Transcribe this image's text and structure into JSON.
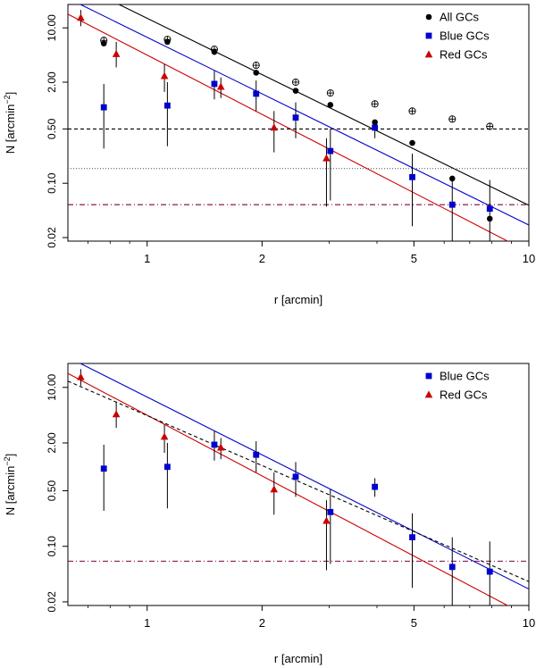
{
  "chart_data": [
    {
      "type": "scatter",
      "title": "",
      "xlabel": "r [arcmin]",
      "ylabel_main": "N [arcmin",
      "ylabel_sup": "−2",
      "ylabel_tail": "]",
      "xscale": "log",
      "yscale": "log",
      "xlim": [
        0.62,
        10
      ],
      "ylim": [
        0.018,
        20
      ],
      "xticks": [
        {
          "v": 1,
          "label": "1"
        },
        {
          "v": 2,
          "label": "2"
        },
        {
          "v": 5,
          "label": "5"
        },
        {
          "v": 10,
          "label": "10"
        }
      ],
      "yticks": [
        {
          "v": 0.02,
          "label": "0.02"
        },
        {
          "v": 0.1,
          "label": "0.10"
        },
        {
          "v": 0.5,
          "label": "0.50"
        },
        {
          "v": 2,
          "label": "2.00"
        },
        {
          "v": 10,
          "label": "10.00"
        }
      ],
      "legend": {
        "position": "top-right",
        "entries": [
          {
            "name": "All GCs",
            "marker": "circle",
            "color": "#000000"
          },
          {
            "name": "Blue GCs",
            "marker": "square",
            "color": "#0000cc"
          },
          {
            "name": "Red GCs",
            "marker": "triangle",
            "color": "#cc0000"
          }
        ]
      },
      "series": [
        {
          "name": "All GCs",
          "marker": "circle",
          "color": "#000000",
          "points": [
            {
              "x": 0.77,
              "y": 6.3
            },
            {
              "x": 1.13,
              "y": 6.6
            },
            {
              "x": 1.5,
              "y": 4.9
            },
            {
              "x": 1.93,
              "y": 2.65
            },
            {
              "x": 2.45,
              "y": 1.55
            },
            {
              "x": 3.02,
              "y": 1.02
            },
            {
              "x": 3.95,
              "y": 0.61
            },
            {
              "x": 4.95,
              "y": 0.33
            },
            {
              "x": 6.3,
              "y": 0.115
            },
            {
              "x": 7.9,
              "y": 0.035
            }
          ]
        },
        {
          "name": "All GCs (uncorrected)",
          "marker": "circle-plus",
          "color": "#000000",
          "points": [
            {
              "x": 0.77,
              "y": 6.9
            },
            {
              "x": 1.13,
              "y": 7.1
            },
            {
              "x": 1.5,
              "y": 5.3
            },
            {
              "x": 1.93,
              "y": 3.3
            },
            {
              "x": 2.45,
              "y": 2.0
            },
            {
              "x": 3.02,
              "y": 1.45
            },
            {
              "x": 3.95,
              "y": 1.05
            },
            {
              "x": 4.95,
              "y": 0.85
            },
            {
              "x": 6.3,
              "y": 0.67
            },
            {
              "x": 7.9,
              "y": 0.54
            }
          ]
        },
        {
          "name": "Blue GCs",
          "marker": "square",
          "color": "#0000cc",
          "points": [
            {
              "x": 0.77,
              "y": 0.95,
              "lo": 0.28,
              "hi": 1.9
            },
            {
              "x": 1.13,
              "y": 1.0,
              "lo": 0.3,
              "hi": 2.0
            },
            {
              "x": 1.5,
              "y": 1.9,
              "lo": 1.2,
              "hi": 2.8
            },
            {
              "x": 1.93,
              "y": 1.42,
              "lo": 0.85,
              "hi": 2.1
            },
            {
              "x": 2.45,
              "y": 0.7,
              "lo": 0.38,
              "hi": 1.1
            },
            {
              "x": 3.02,
              "y": 0.26,
              "lo": 0.06,
              "hi": 0.5
            },
            {
              "x": 3.95,
              "y": 0.52,
              "lo": 0.38,
              "hi": 0.66
            },
            {
              "x": 4.95,
              "y": 0.12,
              "lo": 0.028,
              "hi": 0.24
            },
            {
              "x": 6.3,
              "y": 0.053,
              "lo": 0.01,
              "hi": 0.12
            },
            {
              "x": 7.9,
              "y": 0.047,
              "lo": 0.01,
              "hi": 0.11
            }
          ]
        },
        {
          "name": "Red GCs",
          "marker": "triangle",
          "color": "#cc0000",
          "points": [
            {
              "x": 0.67,
              "y": 13.5,
              "lo": 10.5,
              "hi": 17.0
            },
            {
              "x": 0.83,
              "y": 4.6,
              "lo": 3.1,
              "hi": 6.6
            },
            {
              "x": 1.11,
              "y": 2.4,
              "lo": 1.5,
              "hi": 3.4
            },
            {
              "x": 1.56,
              "y": 1.75,
              "lo": 1.25,
              "hi": 2.3
            },
            {
              "x": 2.15,
              "y": 0.52,
              "lo": 0.25,
              "hi": 0.85
            },
            {
              "x": 2.95,
              "y": 0.21,
              "lo": 0.05,
              "hi": 0.38
            }
          ]
        }
      ],
      "lines": [
        {
          "name": "All GCs fit",
          "color": "#000000",
          "style": "solid",
          "x1": 0.62,
          "y1": 42,
          "x2": 10,
          "y2": 0.052
        },
        {
          "name": "Blue GCs fit",
          "color": "#0000cc",
          "style": "solid",
          "x1": 0.62,
          "y1": 24,
          "x2": 10,
          "y2": 0.029
        },
        {
          "name": "Red GCs fit",
          "color": "#cc0000",
          "style": "solid",
          "x1": 0.62,
          "y1": 15,
          "x2": 10,
          "y2": 0.013
        },
        {
          "name": "Background all GCs",
          "color": "#000000",
          "style": "dashed",
          "y": 0.5
        },
        {
          "name": "Background blue GCs",
          "color": "#666666",
          "style": "dotted",
          "y": 0.155
        },
        {
          "name": "Background red GCs",
          "color": "#800040",
          "style": "dashdot",
          "y": 0.053
        }
      ]
    },
    {
      "type": "scatter",
      "title": "",
      "xlabel": "r [arcmin]",
      "ylabel_main": "N [arcmin",
      "ylabel_sup": "−2",
      "ylabel_tail": "]",
      "xscale": "log",
      "yscale": "log",
      "xlim": [
        0.62,
        10
      ],
      "ylim": [
        0.018,
        20
      ],
      "xticks": [
        {
          "v": 1,
          "label": "1"
        },
        {
          "v": 2,
          "label": "2"
        },
        {
          "v": 5,
          "label": "5"
        },
        {
          "v": 10,
          "label": "10"
        }
      ],
      "yticks": [
        {
          "v": 0.02,
          "label": "0.02"
        },
        {
          "v": 0.1,
          "label": "0.10"
        },
        {
          "v": 0.5,
          "label": "0.50"
        },
        {
          "v": 2,
          "label": "2.00"
        },
        {
          "v": 10,
          "label": "10.00"
        }
      ],
      "legend": {
        "position": "top-right",
        "entries": [
          {
            "name": "Blue GCs",
            "marker": "square",
            "color": "#0000cc"
          },
          {
            "name": "Red GCs",
            "marker": "triangle",
            "color": "#cc0000"
          }
        ]
      },
      "series": [
        {
          "name": "Blue GCs",
          "marker": "square",
          "color": "#0000cc",
          "points": [
            {
              "x": 0.77,
              "y": 0.95,
              "lo": 0.28,
              "hi": 1.9
            },
            {
              "x": 1.13,
              "y": 1.0,
              "lo": 0.3,
              "hi": 2.0
            },
            {
              "x": 1.5,
              "y": 1.9,
              "lo": 1.2,
              "hi": 2.8
            },
            {
              "x": 1.93,
              "y": 1.42,
              "lo": 0.85,
              "hi": 2.1
            },
            {
              "x": 2.45,
              "y": 0.75,
              "lo": 0.42,
              "hi": 1.15
            },
            {
              "x": 3.02,
              "y": 0.27,
              "lo": 0.06,
              "hi": 0.52
            },
            {
              "x": 3.95,
              "y": 0.56,
              "lo": 0.42,
              "hi": 0.72
            },
            {
              "x": 4.95,
              "y": 0.13,
              "lo": 0.03,
              "hi": 0.26
            },
            {
              "x": 6.3,
              "y": 0.055,
              "lo": 0.01,
              "hi": 0.13
            },
            {
              "x": 7.9,
              "y": 0.048,
              "lo": 0.01,
              "hi": 0.115
            }
          ]
        },
        {
          "name": "Red GCs",
          "marker": "triangle",
          "color": "#cc0000",
          "points": [
            {
              "x": 0.67,
              "y": 13.5,
              "lo": 10.5,
              "hi": 17.0
            },
            {
              "x": 0.83,
              "y": 4.6,
              "lo": 3.1,
              "hi": 6.6
            },
            {
              "x": 1.11,
              "y": 2.4,
              "lo": 1.5,
              "hi": 3.4
            },
            {
              "x": 1.56,
              "y": 1.75,
              "lo": 1.25,
              "hi": 2.3
            },
            {
              "x": 2.15,
              "y": 0.52,
              "lo": 0.25,
              "hi": 0.85
            },
            {
              "x": 2.95,
              "y": 0.21,
              "lo": 0.05,
              "hi": 0.38
            }
          ]
        }
      ],
      "lines": [
        {
          "name": "Blue GCs fit",
          "color": "#0000cc",
          "style": "solid",
          "x1": 0.62,
          "y1": 24,
          "x2": 10,
          "y2": 0.029
        },
        {
          "name": "Red GCs fit",
          "color": "#cc0000",
          "style": "solid",
          "x1": 0.62,
          "y1": 15,
          "x2": 10,
          "y2": 0.013
        },
        {
          "name": "Combined fit",
          "color": "#000000",
          "style": "dashed",
          "x1": 0.62,
          "y1": 12,
          "x2": 10,
          "y2": 0.036
        },
        {
          "name": "Background",
          "color": "#800040",
          "style": "dashdot",
          "y": 0.065
        }
      ]
    }
  ]
}
